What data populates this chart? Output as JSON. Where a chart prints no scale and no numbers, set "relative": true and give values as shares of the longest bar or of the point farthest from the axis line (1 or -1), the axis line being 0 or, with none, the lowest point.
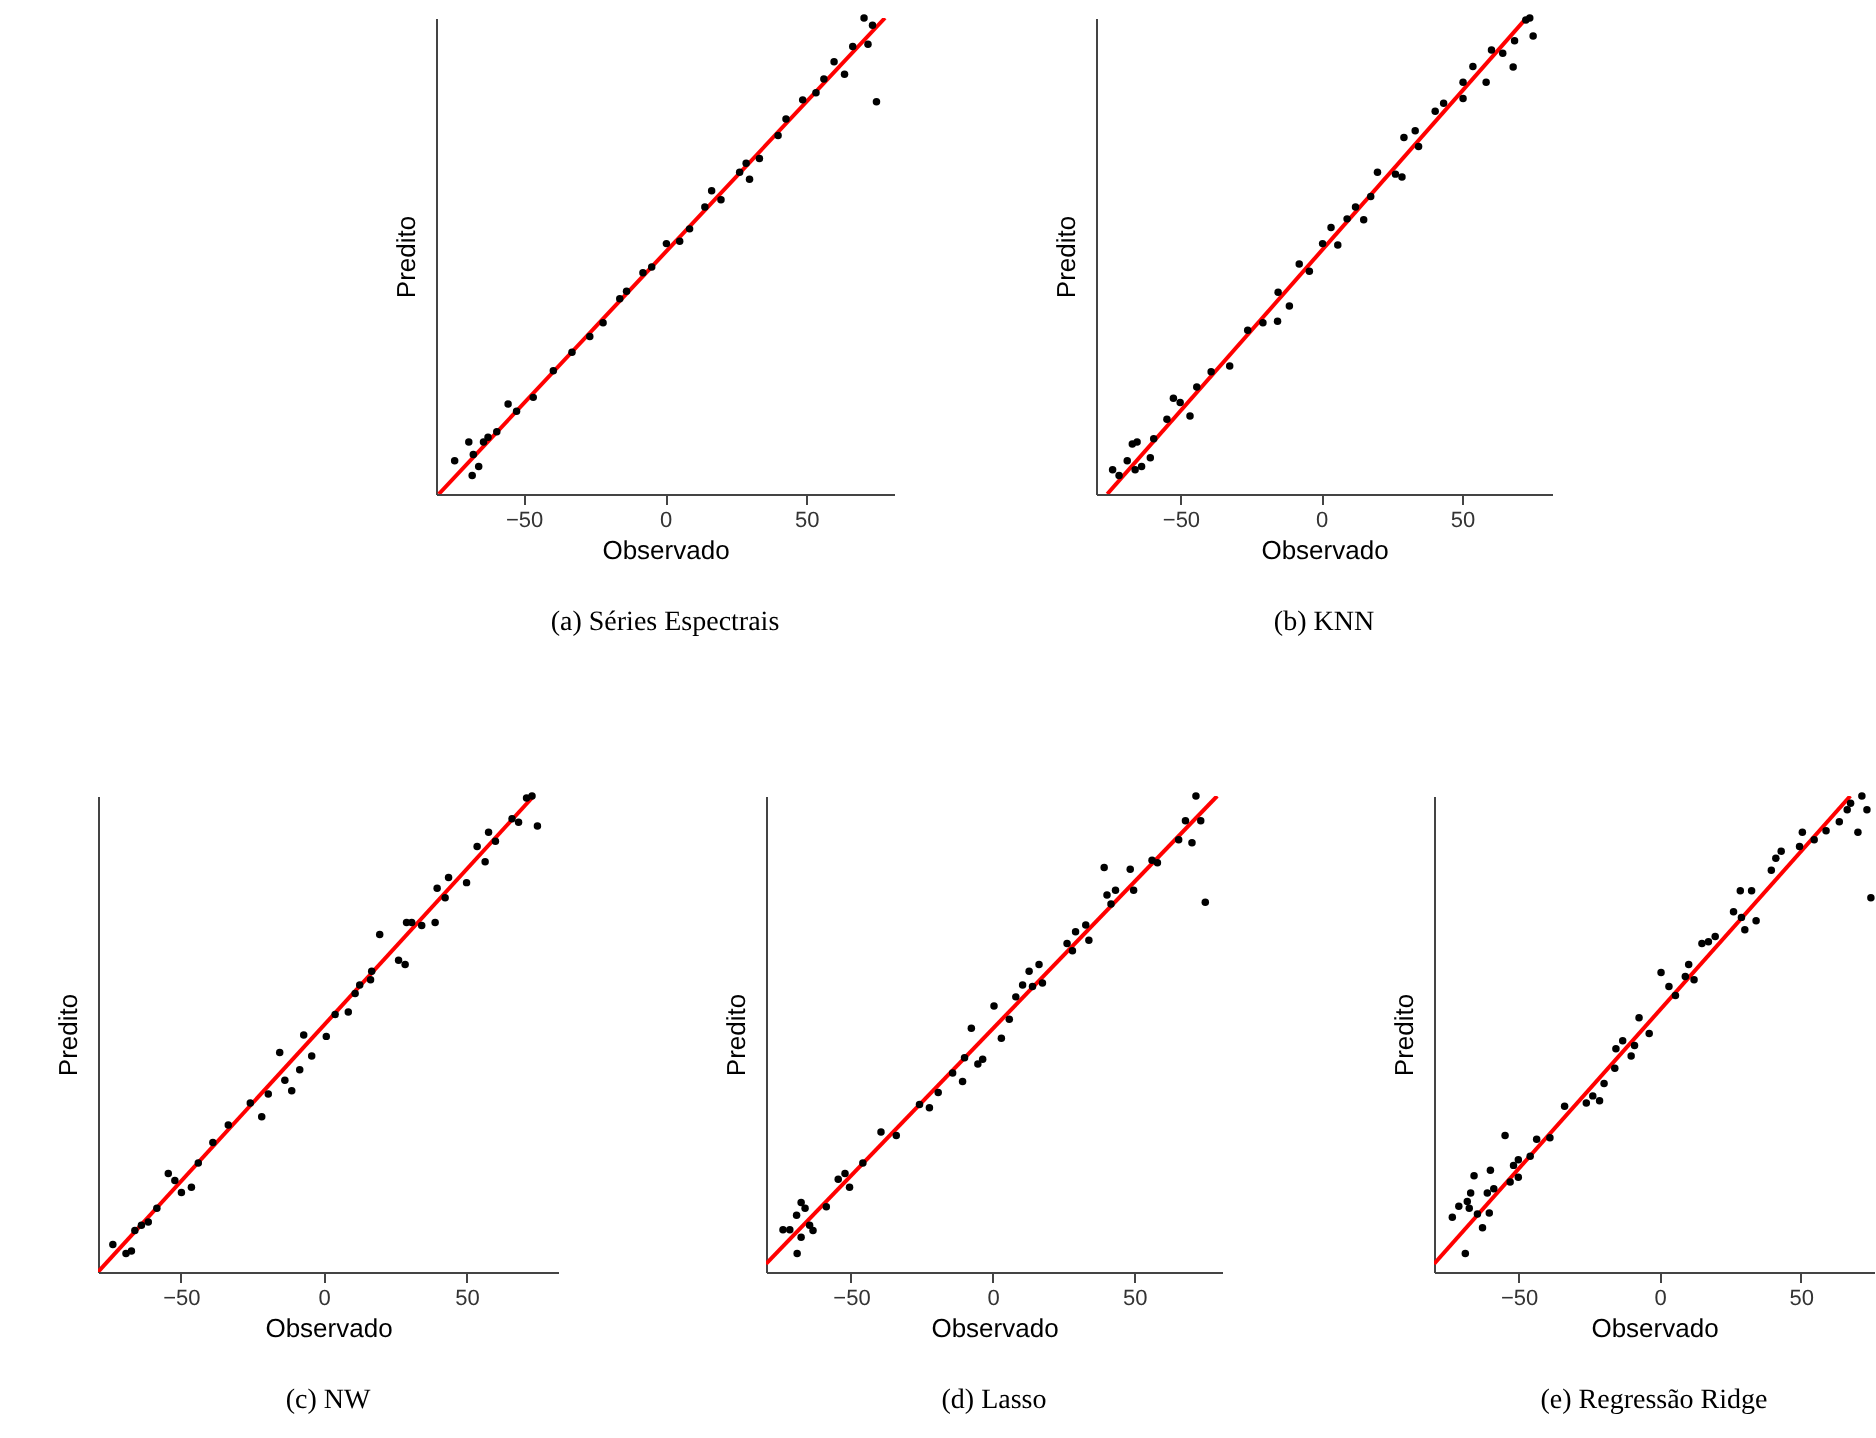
{
  "chart_data": [
    {
      "type": "scatter",
      "title": "(a) Séries Espectrais",
      "xlabel": "Observado",
      "ylabel": "Predito",
      "relative": true,
      "tick_labels": "x",
      "xlim": [
        -81,
        81
      ],
      "xticks": [
        -50,
        0,
        50
      ],
      "marker": "circle",
      "series": [
        {
          "color": "#000000",
          "x": [
            -74.4,
            -69.4,
            -67.8,
            -65.9,
            -68.2,
            -64.2,
            -62.6,
            -59.5,
            -55.5,
            -52.5,
            -46.6,
            -39.5,
            -32.9,
            -26.6,
            -21.9,
            -16,
            -13.6,
            -7.8,
            -4.7,
            0.5,
            5.2,
            8.7,
            14.1,
            16.5,
            19.8,
            26.4,
            28.7,
            29.9,
            33.4,
            40,
            42.8,
            48.7,
            53.4,
            56.2,
            59.8,
            63.5,
            66.4,
            70.4,
            71.8,
            73.4,
            74.8
          ],
          "values": [
            0.07,
            0.109,
            0.083,
            0.058,
            0.039,
            0.109,
            0.119,
            0.131,
            0.189,
            0.174,
            0.203,
            0.259,
            0.298,
            0.331,
            0.36,
            0.41,
            0.426,
            0.465,
            0.477,
            0.526,
            0.531,
            0.557,
            0.603,
            0.637,
            0.618,
            0.676,
            0.695,
            0.661,
            0.705,
            0.753,
            0.788,
            0.828,
            0.843,
            0.872,
            0.908,
            0.882,
            0.94,
            1.0,
            0.945,
            0.985,
            0.824
          ]
        },
        {
          "type": "line",
          "marker": "none",
          "color": "#ff0000",
          "x": [
            -80,
            77.8
          ],
          "values": [
            0,
            1
          ]
        }
      ]
    },
    {
      "type": "scatter",
      "title": "(b) KNN",
      "xlabel": "Observado",
      "ylabel": "Predito",
      "relative": true,
      "tick_labels": "x",
      "xlim": [
        -80,
        82
      ],
      "xticks": [
        -50,
        0,
        50
      ],
      "marker": "circle",
      "series": [
        {
          "color": "#000000",
          "x": [
            -74.1,
            -71.8,
            -68.9,
            -67.1,
            -65.4,
            -66.1,
            -63.8,
            -60.7,
            -59.5,
            -54.8,
            -52.5,
            -50.1,
            -46.6,
            -44.2,
            -39.1,
            -32.5,
            -26.1,
            -20.7,
            -15.5,
            -15.3,
            -11.3,
            -7.8,
            -4.2,
            0.5,
            3.5,
            5.9,
            9.2,
            12.2,
            15.1,
            17.6,
            20,
            26.4,
            28.7,
            29.4,
            33.4,
            34.6,
            40.5,
            43.5,
            50.4,
            50.4,
            53.9,
            58.6,
            60.5,
            64.5,
            68.7,
            68.2,
            72.7,
            74.1,
            75.3
          ],
          "values": [
            0.051,
            0.039,
            0.07,
            0.105,
            0.109,
            0.051,
            0.058,
            0.076,
            0.116,
            0.157,
            0.201,
            0.192,
            0.164,
            0.225,
            0.257,
            0.269,
            0.344,
            0.36,
            0.363,
            0.424,
            0.395,
            0.483,
            0.468,
            0.526,
            0.56,
            0.523,
            0.578,
            0.603,
            0.576,
            0.625,
            0.676,
            0.672,
            0.666,
            0.749,
            0.763,
            0.73,
            0.804,
            0.821,
            0.831,
            0.865,
            0.898,
            0.865,
            0.933,
            0.926,
            0.952,
            0.897,
            0.996,
            1.0,
            0.962
          ]
        },
        {
          "type": "line",
          "marker": "none",
          "color": "#ff0000",
          "x": [
            -76,
            72.9
          ],
          "values": [
            0,
            1
          ]
        }
      ]
    },
    {
      "type": "scatter",
      "title": "(c) NW",
      "xlabel": "Observado",
      "ylabel": "Predito",
      "relative": true,
      "tick_labels": "x",
      "xlim": [
        -79,
        82
      ],
      "xticks": [
        -50,
        0,
        50
      ],
      "marker": "circle",
      "series": [
        {
          "color": "#000000",
          "x": [
            -73.8,
            -69.2,
            -67.3,
            -66.1,
            -63.8,
            -61.4,
            -58.4,
            -54.4,
            -52.1,
            -49.8,
            -46.3,
            -43.9,
            -38.8,
            -33.4,
            -25.7,
            -21.7,
            -19.4,
            -15.4,
            -13.6,
            -11.2,
            -8.4,
            -7,
            -4.2,
            0.9,
            4,
            8.6,
            11,
            12.6,
            16.4,
            16.8,
            19.6,
            26.2,
            28.5,
            29,
            30.8,
            34.3,
            39,
            39.7,
            42.5,
            43.7,
            50,
            53.7,
            56.5,
            57.7,
            60.1,
            65.9,
            68.2,
            71,
            72.9,
            74.8
          ],
          "values": [
            0.058,
            0.039,
            0.044,
            0.087,
            0.098,
            0.105,
            0.134,
            0.207,
            0.192,
            0.167,
            0.178,
            0.229,
            0.272,
            0.309,
            0.355,
            0.326,
            0.374,
            0.461,
            0.403,
            0.381,
            0.425,
            0.498,
            0.454,
            0.495,
            0.541,
            0.546,
            0.585,
            0.603,
            0.614,
            0.632,
            0.709,
            0.655,
            0.646,
            0.734,
            0.734,
            0.728,
            0.734,
            0.806,
            0.786,
            0.829,
            0.818,
            0.894,
            0.862,
            0.924,
            0.905,
            0.952,
            0.945,
            0.996,
            1.0,
            0.937
          ]
        },
        {
          "type": "line",
          "marker": "none",
          "color": "#ff0000",
          "x": [
            -79,
            73.5
          ],
          "values": [
            0,
            1
          ]
        }
      ]
    },
    {
      "type": "scatter",
      "title": "(d) Lasso",
      "xlabel": "Observado",
      "ylabel": "Predito",
      "relative": true,
      "tick_labels": "x",
      "xlim": [
        -80,
        81
      ],
      "xticks": [
        -50,
        0,
        50
      ],
      "marker": "circle",
      "series": [
        {
          "color": "#000000",
          "x": [
            -74,
            -71.6,
            -69.2,
            -67.6,
            -66.2,
            -69,
            -67.6,
            -64.6,
            -63.4,
            -58.7,
            -54.5,
            -52.1,
            -50.5,
            -45.8,
            -39.4,
            -34,
            -25.8,
            -22.3,
            -19.2,
            -14.1,
            -10.6,
            -9.9,
            -7.5,
            -5.2,
            -3.5,
            0.5,
            3.1,
            5.9,
            8.2,
            10.6,
            12.9,
            14.1,
            16.4,
            17.6,
            26.3,
            28.2,
            29.3,
            32.9,
            34,
            39.4,
            40.4,
            41.8,
            43.4,
            48.6,
            49.8,
            56.3,
            58.2,
            65.7,
            68.1,
            70.4,
            71.8,
            73.5,
            75.1
          ],
          "values": [
            0.089,
            0.089,
            0.119,
            0.146,
            0.134,
            0.039,
            0.073,
            0.098,
            0.087,
            0.137,
            0.195,
            0.207,
            0.178,
            0.229,
            0.294,
            0.287,
            0.352,
            0.345,
            0.377,
            0.418,
            0.4,
            0.45,
            0.512,
            0.437,
            0.447,
            0.559,
            0.491,
            0.531,
            0.578,
            0.603,
            0.632,
            0.6,
            0.646,
            0.607,
            0.69,
            0.675,
            0.715,
            0.729,
            0.697,
            0.85,
            0.792,
            0.773,
            0.802,
            0.846,
            0.802,
            0.865,
            0.86,
            0.908,
            0.948,
            0.902,
            1.0,
            0.948,
            0.777
          ]
        },
        {
          "type": "line",
          "marker": "none",
          "color": "#ff0000",
          "x": [
            -80,
            79.3
          ],
          "values": [
            0.017,
            1
          ]
        }
      ]
    },
    {
      "type": "scatter",
      "title": "(e) Regressão Ridge",
      "xlabel": "Observado",
      "ylabel": "Predito",
      "relative": true,
      "tick_labels": "x",
      "xlim": [
        -80,
        76
      ],
      "xticks": [
        -50,
        0,
        50
      ],
      "marker": "circle",
      "series": [
        {
          "color": "#000000",
          "x": [
            -73.5,
            -71.2,
            -68.9,
            -68.2,
            -67.5,
            -67,
            -65.8,
            -64.6,
            -62.8,
            -61.1,
            -60.4,
            -60,
            -58.8,
            -54.8,
            -53,
            -51.8,
            -50.1,
            -50.1,
            -45.9,
            -43.6,
            -38.9,
            -33.7,
            -26,
            -23.7,
            -21.3,
            -19.7,
            -15.9,
            -15.5,
            -13.1,
            -10.1,
            -8.9,
            -7.3,
            -3.7,
            0.5,
            3.3,
            5.6,
            9.1,
            10.3,
            12.2,
            15,
            17.3,
            19.7,
            26.2,
            28.6,
            29,
            30.2,
            32.6,
            34.2,
            39.6,
            41.2,
            43.1,
            49.6,
            50.6,
            54.8,
            59,
            63.7,
            66.5,
            67.7,
            71.7,
            70.3,
            73.5,
            74.9
          ],
          "values": [
            0.115,
            0.138,
            0.039,
            0.148,
            0.134,
            0.166,
            0.202,
            0.122,
            0.093,
            0.166,
            0.124,
            0.214,
            0.175,
            0.287,
            0.189,
            0.224,
            0.236,
            0.199,
            0.243,
            0.279,
            0.282,
            0.348,
            0.355,
            0.37,
            0.36,
            0.396,
            0.428,
            0.469,
            0.486,
            0.454,
            0.476,
            0.534,
            0.501,
            0.629,
            0.6,
            0.581,
            0.621,
            0.646,
            0.614,
            0.69,
            0.694,
            0.705,
            0.757,
            0.801,
            0.745,
            0.719,
            0.801,
            0.738,
            0.844,
            0.869,
            0.884,
            0.894,
            0.924,
            0.908,
            0.927,
            0.946,
            0.971,
            0.985,
            1.0,
            0.924,
            0.971,
            0.786
          ]
        },
        {
          "type": "line",
          "marker": "none",
          "color": "#ff0000",
          "x": [
            -80,
            67.6
          ],
          "values": [
            0.017,
            1
          ]
        }
      ]
    }
  ]
}
